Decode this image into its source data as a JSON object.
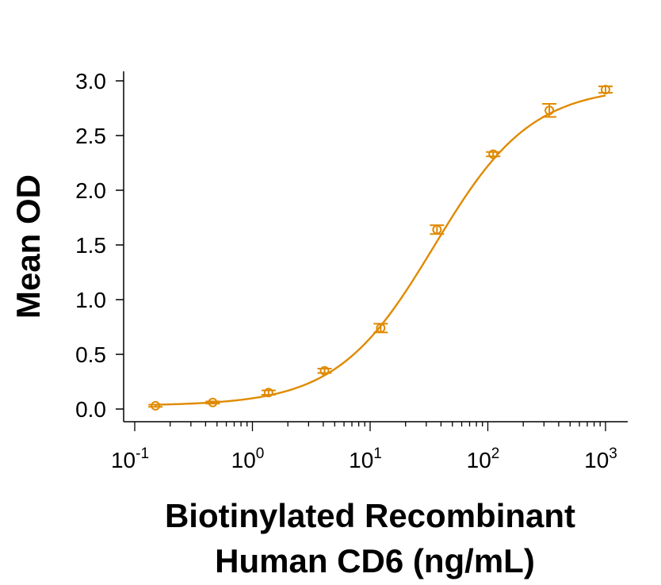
{
  "chart_data": {
    "type": "scatter",
    "title": "",
    "xlabel_lines": [
      "Biotinylated Recombinant",
      "Human CD6 (ng/mL)"
    ],
    "ylabel": "Mean OD",
    "x_scale": "log",
    "xlim": [
      0.1,
      1000
    ],
    "ylim": [
      0,
      3.0
    ],
    "x_ticks": [
      {
        "base": "10",
        "exp": "-1"
      },
      {
        "base": "10",
        "exp": "0"
      },
      {
        "base": "10",
        "exp": "1"
      },
      {
        "base": "10",
        "exp": "2"
      },
      {
        "base": "10",
        "exp": "3"
      }
    ],
    "y_ticks": [
      "0.0",
      "0.5",
      "1.0",
      "1.5",
      "2.0",
      "2.5",
      "3.0"
    ],
    "grid": false,
    "color": "#e08a00",
    "series": [
      {
        "points": [
          {
            "x": 0.15,
            "y": 0.03,
            "err": 0.01
          },
          {
            "x": 0.46,
            "y": 0.06,
            "err": 0.01
          },
          {
            "x": 1.37,
            "y": 0.15,
            "err": 0.02
          },
          {
            "x": 4.1,
            "y": 0.35,
            "err": 0.02
          },
          {
            "x": 12.3,
            "y": 0.74,
            "err": 0.04
          },
          {
            "x": 37.0,
            "y": 1.64,
            "err": 0.04
          },
          {
            "x": 111,
            "y": 2.33,
            "err": 0.02
          },
          {
            "x": 333,
            "y": 2.73,
            "err": 0.06
          },
          {
            "x": 1000,
            "y": 2.92,
            "err": 0.03
          }
        ],
        "fit": {
          "model": "4PL",
          "bottom": 0.03,
          "top": 2.95,
          "ec50": 35,
          "hill": 1.05
        }
      }
    ]
  }
}
